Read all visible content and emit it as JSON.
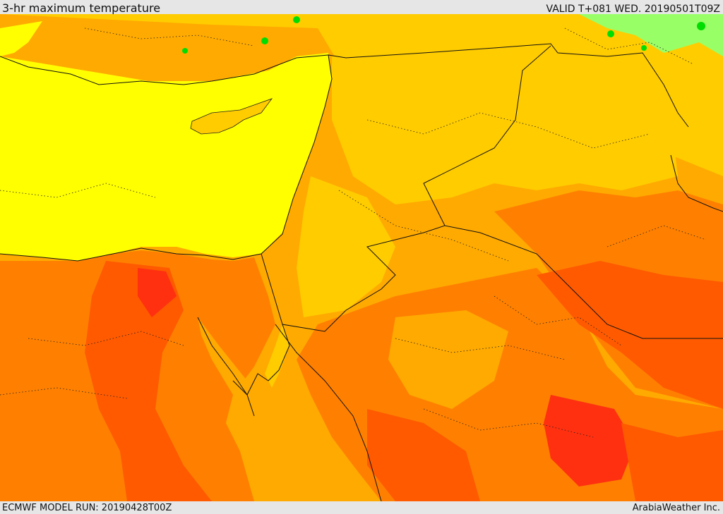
{
  "header": {
    "title": "3-hr maximum temperature",
    "valid_time": "VALID T+081 WED. 20190501T09Z"
  },
  "footer": {
    "model_run": "ECMWF MODEL RUN: 20190428T00Z",
    "provider": "ArabiaWeather Inc."
  },
  "map": {
    "field": "3-hr maximum temperature",
    "palette": {
      "green": "#00dd00",
      "light_green": "#99ff66",
      "yellow": "#ffff00",
      "light_orange": "#ffcc00",
      "orange": "#ffaa00",
      "dark_orange": "#ff8000",
      "red_orange": "#ff5a00",
      "red": "#ff3010"
    }
  }
}
